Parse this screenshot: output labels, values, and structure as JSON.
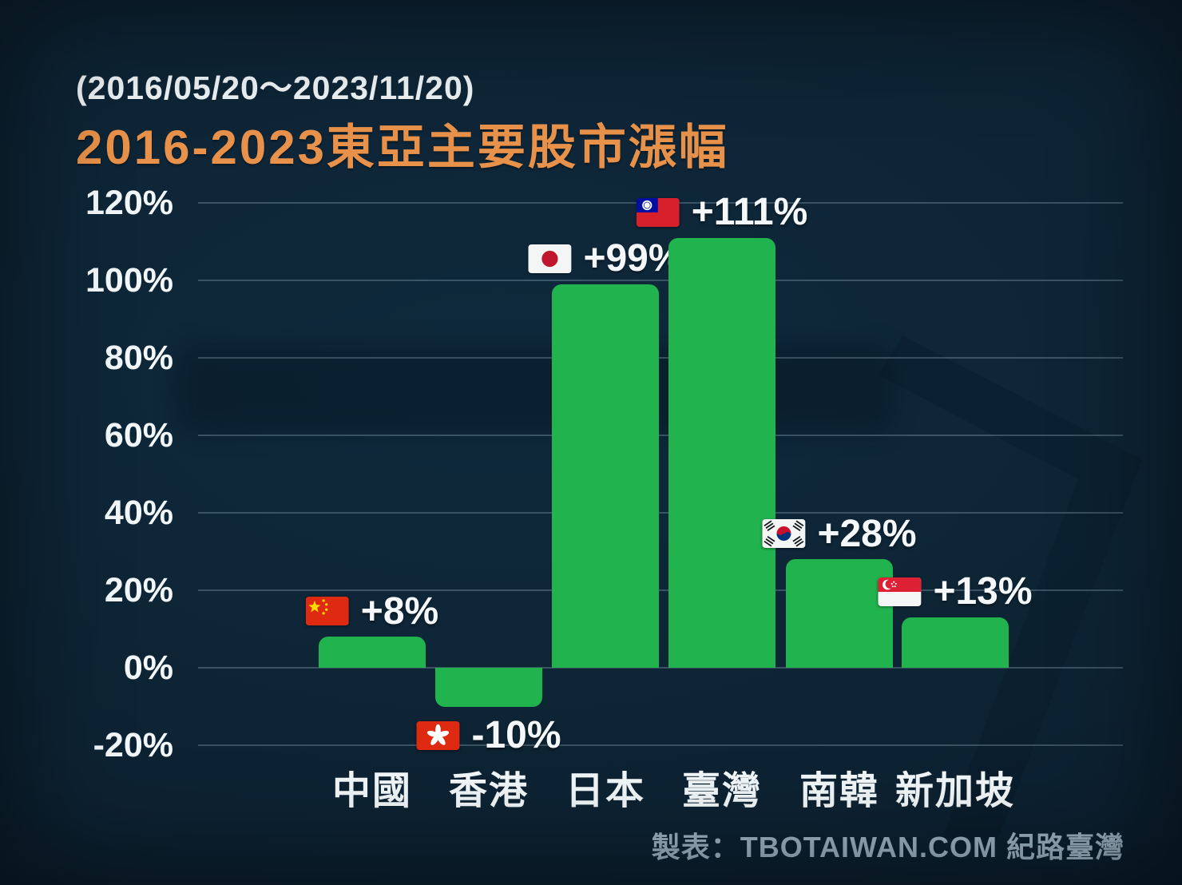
{
  "header": {
    "subtitle": "(2016/05/20～2023/11/20)",
    "title": "2016-2023東亞主要股市漲幅"
  },
  "footer": {
    "credit": "製表：TBOTAIWAN.COM 紀路臺灣"
  },
  "colors": {
    "background": "#0d2333",
    "bar": "#21b44e",
    "title": "#e8914a",
    "text": "#f2f7fa",
    "grid": "rgba(174,202,218,0.28)",
    "footer_text": "#9cb2c2"
  },
  "chart_data": {
    "type": "bar",
    "title": "2016-2023東亞主要股市漲幅",
    "subtitle": "(2016/05/20～2023/11/20)",
    "categories": [
      "中國",
      "香港",
      "日本",
      "臺灣",
      "南韓",
      "新加坡"
    ],
    "values": [
      8,
      -10,
      99,
      111,
      28,
      13
    ],
    "value_labels": [
      "+8%",
      "-10%",
      "+99%",
      "+111%",
      "+28%",
      "+13%"
    ],
    "flags": [
      "china",
      "hongkong",
      "japan",
      "taiwan",
      "southkorea",
      "singapore"
    ],
    "y_tick_labels": [
      "120%",
      "100%",
      "80%",
      "60%",
      "40%",
      "20%",
      "0%",
      "-20%"
    ],
    "y_tick_values": [
      120,
      100,
      80,
      60,
      40,
      20,
      0,
      -20
    ],
    "ylim": [
      -20,
      120
    ],
    "grid": true,
    "legend": false,
    "bar_color": "#21b44e",
    "xlabel": "",
    "ylabel": ""
  }
}
